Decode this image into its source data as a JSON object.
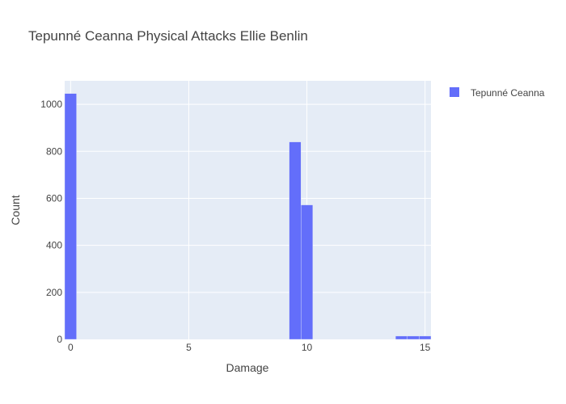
{
  "chart_data": {
    "type": "bar",
    "title": "Tepunné Ceanna Physical Attacks Ellie Benlin",
    "xlabel": "Damage",
    "ylabel": "Count",
    "xlim": [
      -0.25,
      15.25
    ],
    "ylim": [
      0,
      1100
    ],
    "x_ticks": [
      0,
      5,
      10,
      15
    ],
    "y_ticks": [
      0,
      200,
      400,
      600,
      800,
      1000
    ],
    "grid": true,
    "legend_position": "top-right",
    "colors": {
      "bar": "#636efa",
      "plot_bg": "#e5ecf6",
      "grid": "#ffffff"
    },
    "series": [
      {
        "name": "Tepunné Ceanna",
        "bins": [
          {
            "x0": -0.25,
            "x1": 0.25,
            "value": 1046
          },
          {
            "x0": 9.25,
            "x1": 9.75,
            "value": 840
          },
          {
            "x0": 9.75,
            "x1": 10.25,
            "value": 572
          },
          {
            "x0": 13.75,
            "x1": 14.25,
            "value": 14
          },
          {
            "x0": 14.25,
            "x1": 14.75,
            "value": 14
          },
          {
            "x0": 14.75,
            "x1": 15.25,
            "value": 14
          }
        ]
      }
    ]
  }
}
